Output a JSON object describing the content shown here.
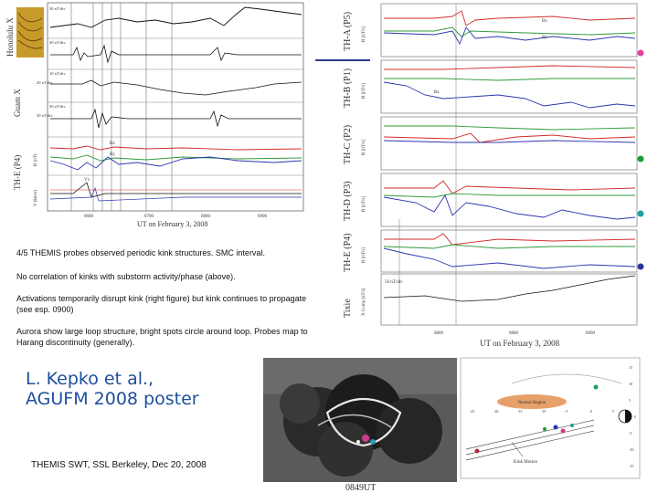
{
  "left_panel": {
    "row_labels": [
      "Honolulu X",
      "Guam X",
      "TH-E (P4)"
    ],
    "channel_labels": [
      "50 nT/div",
      "20 nT/div",
      "10 nT/div",
      "50 nT/div",
      "20 nT/div",
      "50 nT/div",
      "B (nT)",
      "V (km/s)"
    ],
    "field_labels": [
      "Bx",
      "By",
      "Vx"
    ],
    "x_ticks": [
      "0600",
      "0700",
      "0800",
      "0900"
    ],
    "x_axis_label": "UT on February 3, 2008"
  },
  "right_panel": {
    "probe_labels": [
      "TH-A (P5)",
      "TH-B (P1)",
      "TH-C (P2)",
      "TH-D (P3)",
      "TH-E (P4)",
      "Tixie"
    ],
    "unit_labels": [
      "B [nT/s]",
      "B [nT/s]",
      "B [nT/s]",
      "B [nT/s]",
      "B [nT/s]",
      "X Comp [nT/s]"
    ],
    "scale_label": "50 nT/div",
    "field_labels": [
      "Bx",
      "By",
      "Bz"
    ],
    "x_ticks": [
      "0800",
      "0800",
      "0900"
    ],
    "x_axis_label": "UT on February 3, 2008",
    "colors": {
      "red": "#d22a2a",
      "green": "#2f9a3a",
      "blue": "#2a36b0",
      "dot_pink": "#e0409a",
      "dot_green": "#1e9a3a",
      "dot_teal": "#1aa0a0",
      "dot_navy": "#2a3a9a",
      "separator": "#2b3b8c"
    }
  },
  "notes": [
    "4/5 THEMIS probes observed periodic kink structures. SMC interval.",
    "No correlation of kinks with substorm activity/phase (above).",
    "Activations temporarily disrupt kink (right figure) but kink continues to propagate (see esp. 0900)",
    "Aurora show large loop structure, bright spots circle around loop. Probes map to Harang discontinuity (generally)."
  ],
  "credit": "L. Kepko et al., AGUFM 2008 poster",
  "footer": "THEMIS SWT, SSL Berkeley, Dec 20, 2008",
  "aurora_timestamp": "0849UT",
  "orbit_diagram": {
    "labels": [
      "Neutral Region",
      "Kink Motion"
    ],
    "x_ticks": [
      "-25",
      "-20",
      "-15",
      "-10",
      "-5",
      "0",
      "5"
    ],
    "y_ticks": [
      "15",
      "10",
      "5",
      "0",
      "-5",
      "-10",
      "-15"
    ]
  }
}
